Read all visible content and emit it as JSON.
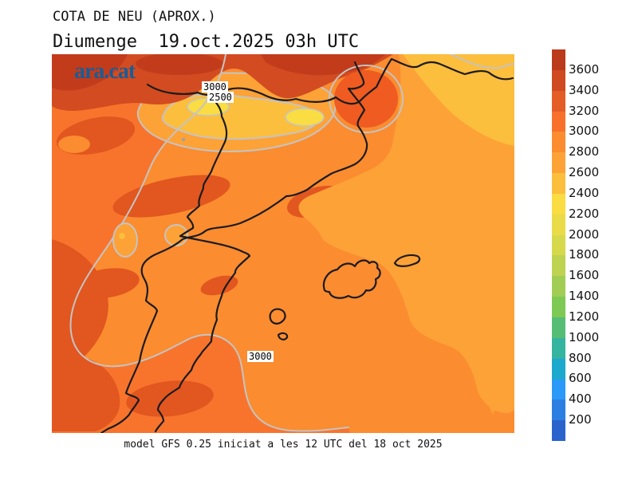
{
  "header": {
    "title": "COTA DE NEU (APROX.)",
    "subtitle": "Diumenge  19.oct.2025 03h UTC"
  },
  "map": {
    "logo_text": "ara.cat",
    "logo_color": "#1B5C94",
    "contour_labels": [
      {
        "text": "3000"
      },
      {
        "text": "2500"
      },
      {
        "text": "3000"
      }
    ]
  },
  "colorbar": {
    "tick_labels": [
      "3600",
      "3400",
      "3200",
      "3000",
      "2800",
      "2600",
      "2400",
      "2200",
      "2000",
      "1800",
      "1600",
      "1400",
      "1200",
      "1000",
      "800",
      "600",
      "400",
      "200"
    ],
    "colors_top_to_bottom": [
      "#BB3A1C",
      "#CF4A20",
      "#E55D26",
      "#F8702B",
      "#FB8C30",
      "#FDA237",
      "#FCBE3D",
      "#FADC43",
      "#E9DC48",
      "#D6D94C",
      "#BED352",
      "#A2CD55",
      "#7EC953",
      "#55BD76",
      "#35B49F",
      "#1CA9CD",
      "#2B99F7",
      "#2B7FE3",
      "#2B63CC"
    ]
  },
  "footer": {
    "caption": "model GFS 0.25 iniciat a les 12 UTC del 18 oct 2025"
  },
  "chart_data": {
    "type": "heatmap",
    "title": "COTA DE NEU (APROX.)",
    "subtitle": "Diumenge 19.oct.2025 03h UTC",
    "legend_position": "right",
    "legend_ticks": [
      3600,
      3400,
      3200,
      3000,
      2800,
      2600,
      2400,
      2200,
      2000,
      1800,
      1600,
      1400,
      1200,
      1000,
      800,
      600,
      400,
      200
    ],
    "value_range_shown_on_map": [
      2200,
      3600
    ],
    "contour_labels_on_map": [
      3000,
      2500,
      3000
    ],
    "source_note": "model GFS 0.25 iniciat a les 12 UTC del 18 oct 2025"
  }
}
